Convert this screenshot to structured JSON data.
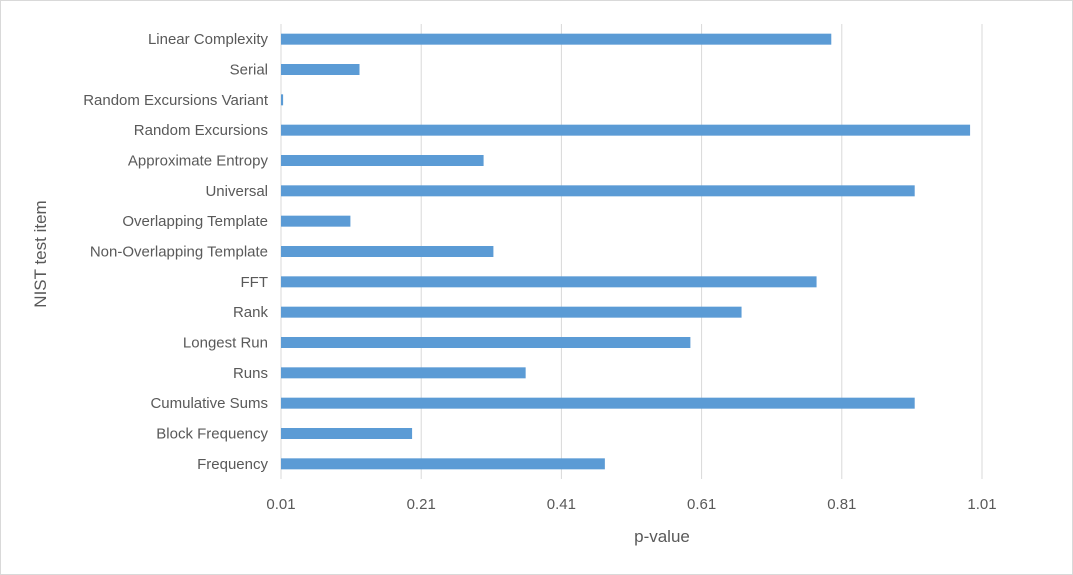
{
  "chart_data": {
    "type": "bar",
    "orientation": "horizontal",
    "title": "",
    "xlabel": "p-value",
    "ylabel": "NIST test item",
    "xlim": [
      0.01,
      1.01
    ],
    "xticks": [
      0.01,
      0.21,
      0.41,
      0.61,
      0.81,
      1.01
    ],
    "xtick_labels": [
      "0.01",
      "0.21",
      "0.41",
      "0.61",
      "0.81",
      "1.01"
    ],
    "grid": "vertical",
    "legend": "none",
    "bar_color": "#5b9bd5",
    "categories": [
      "Frequency",
      "Block Frequency",
      "Cumulative Sums",
      "Runs",
      "Longest Run",
      "Rank",
      "FFT",
      "Non-Overlapping Template",
      "Overlapping Template",
      "Universal",
      "Approximate Entropy",
      "Random Excursions",
      "Random Excursions Variant",
      "Serial",
      "Linear Complexity"
    ],
    "values": [
      0.472,
      0.197,
      0.914,
      0.359,
      0.594,
      0.667,
      0.774,
      0.313,
      0.109,
      0.914,
      0.299,
      0.993,
      0.013,
      0.122,
      0.795
    ]
  }
}
